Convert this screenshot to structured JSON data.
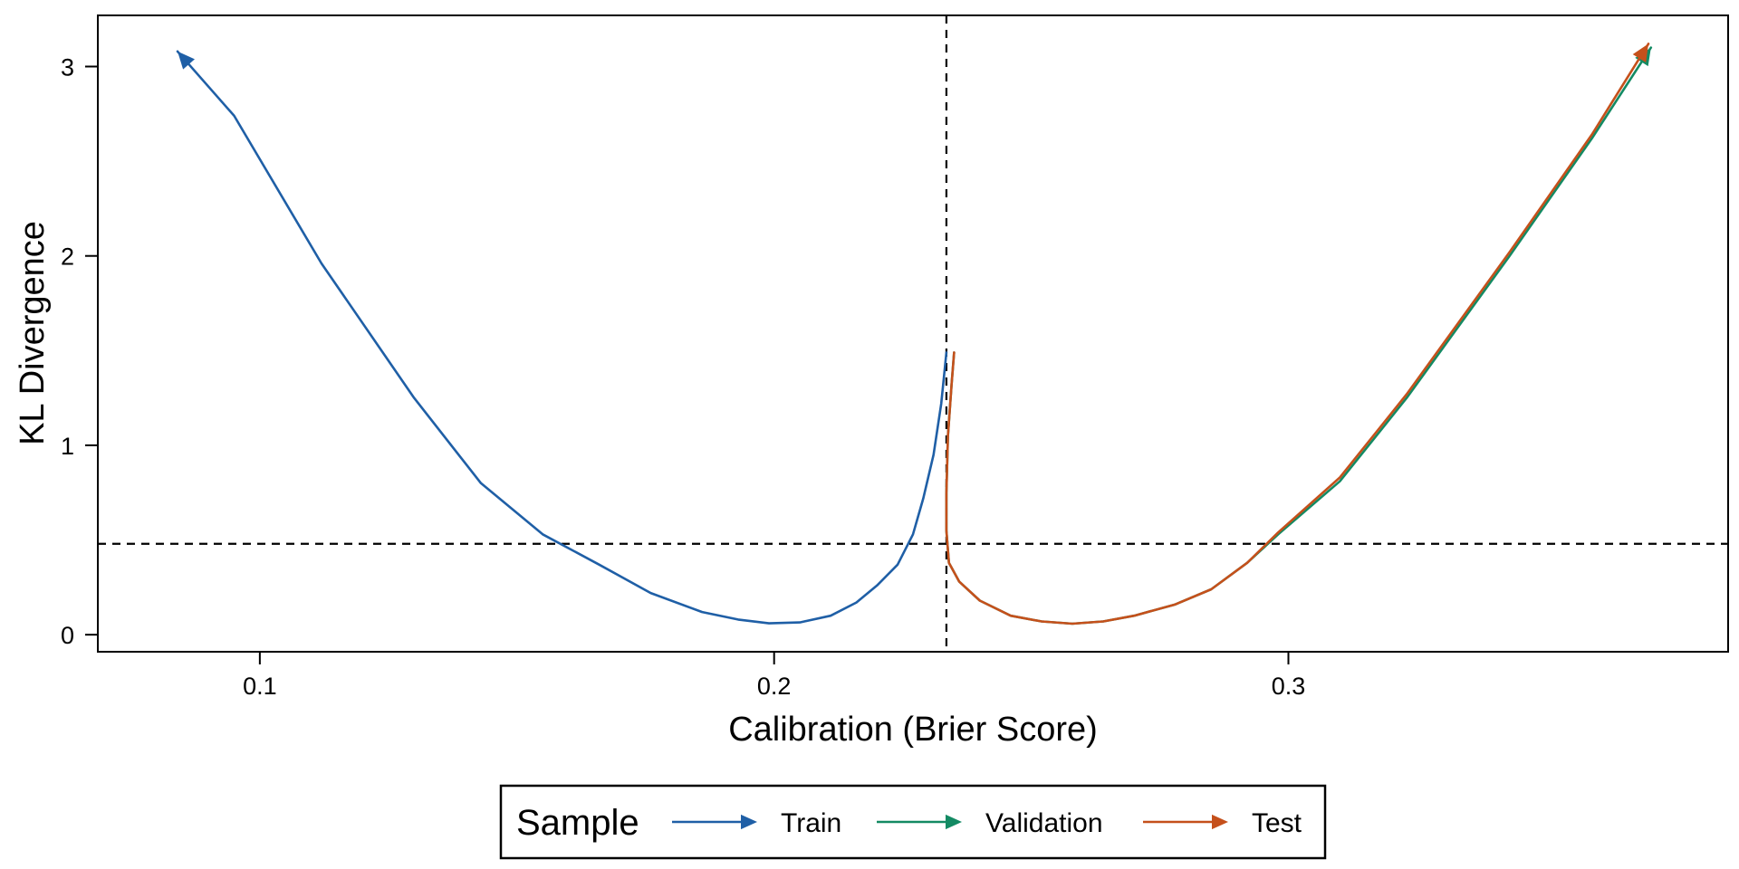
{
  "chart_data": {
    "type": "line",
    "xlabel": "Calibration (Brier Score)",
    "ylabel": "KL Divergence",
    "xlim": [
      0.0685,
      0.3855
    ],
    "ylim": [
      -0.09,
      3.27
    ],
    "x_ticks": [
      0.1,
      0.2,
      0.3
    ],
    "x_tick_labels": [
      "0.1",
      "0.2",
      "0.3"
    ],
    "y_ticks": [
      0,
      1,
      2,
      3
    ],
    "y_tick_labels": [
      "0",
      "1",
      "2",
      "3"
    ],
    "grid": false,
    "legend": {
      "title": "Sample",
      "position": "bottom"
    },
    "reference_lines": {
      "vertical_x": 0.2335,
      "horizontal_y": 0.48,
      "style": "dashed"
    },
    "series": [
      {
        "name": "Train",
        "color": "#1f5fa6",
        "arrow_end": "start",
        "points": [
          [
            0.084,
            3.08
          ],
          [
            0.095,
            2.74
          ],
          [
            0.112,
            1.96
          ],
          [
            0.13,
            1.25
          ],
          [
            0.143,
            0.8
          ],
          [
            0.155,
            0.53
          ],
          [
            0.166,
            0.37
          ],
          [
            0.176,
            0.22
          ],
          [
            0.186,
            0.12
          ],
          [
            0.193,
            0.08
          ],
          [
            0.199,
            0.06
          ],
          [
            0.205,
            0.065
          ],
          [
            0.211,
            0.1
          ],
          [
            0.216,
            0.17
          ],
          [
            0.22,
            0.26
          ],
          [
            0.224,
            0.37
          ],
          [
            0.227,
            0.53
          ],
          [
            0.229,
            0.72
          ],
          [
            0.231,
            0.95
          ],
          [
            0.2325,
            1.22
          ],
          [
            0.2335,
            1.49
          ]
        ]
      },
      {
        "name": "Validation",
        "color": "#138a63",
        "arrow_end": "end",
        "points": [
          [
            0.235,
            1.49
          ],
          [
            0.2345,
            1.32
          ],
          [
            0.2338,
            1.05
          ],
          [
            0.2335,
            0.75
          ],
          [
            0.2335,
            0.55
          ],
          [
            0.234,
            0.38
          ],
          [
            0.236,
            0.28
          ],
          [
            0.24,
            0.18
          ],
          [
            0.246,
            0.1
          ],
          [
            0.252,
            0.07
          ],
          [
            0.258,
            0.058
          ],
          [
            0.264,
            0.07
          ],
          [
            0.27,
            0.1
          ],
          [
            0.278,
            0.16
          ],
          [
            0.285,
            0.24
          ],
          [
            0.292,
            0.38
          ],
          [
            0.298,
            0.53
          ],
          [
            0.31,
            0.81
          ],
          [
            0.323,
            1.25
          ],
          [
            0.343,
            2.0
          ],
          [
            0.359,
            2.62
          ],
          [
            0.3705,
            3.1
          ]
        ]
      },
      {
        "name": "Test",
        "color": "#c5501b",
        "arrow_end": "end",
        "points": [
          [
            0.235,
            1.49
          ],
          [
            0.2345,
            1.32
          ],
          [
            0.2338,
            1.05
          ],
          [
            0.2335,
            0.75
          ],
          [
            0.2335,
            0.55
          ],
          [
            0.234,
            0.38
          ],
          [
            0.236,
            0.28
          ],
          [
            0.24,
            0.18
          ],
          [
            0.246,
            0.1
          ],
          [
            0.252,
            0.07
          ],
          [
            0.258,
            0.058
          ],
          [
            0.264,
            0.07
          ],
          [
            0.27,
            0.1
          ],
          [
            0.278,
            0.16
          ],
          [
            0.285,
            0.24
          ],
          [
            0.292,
            0.38
          ],
          [
            0.298,
            0.54
          ],
          [
            0.31,
            0.83
          ],
          [
            0.323,
            1.27
          ],
          [
            0.343,
            2.02
          ],
          [
            0.359,
            2.64
          ],
          [
            0.37,
            3.12
          ]
        ]
      }
    ]
  }
}
